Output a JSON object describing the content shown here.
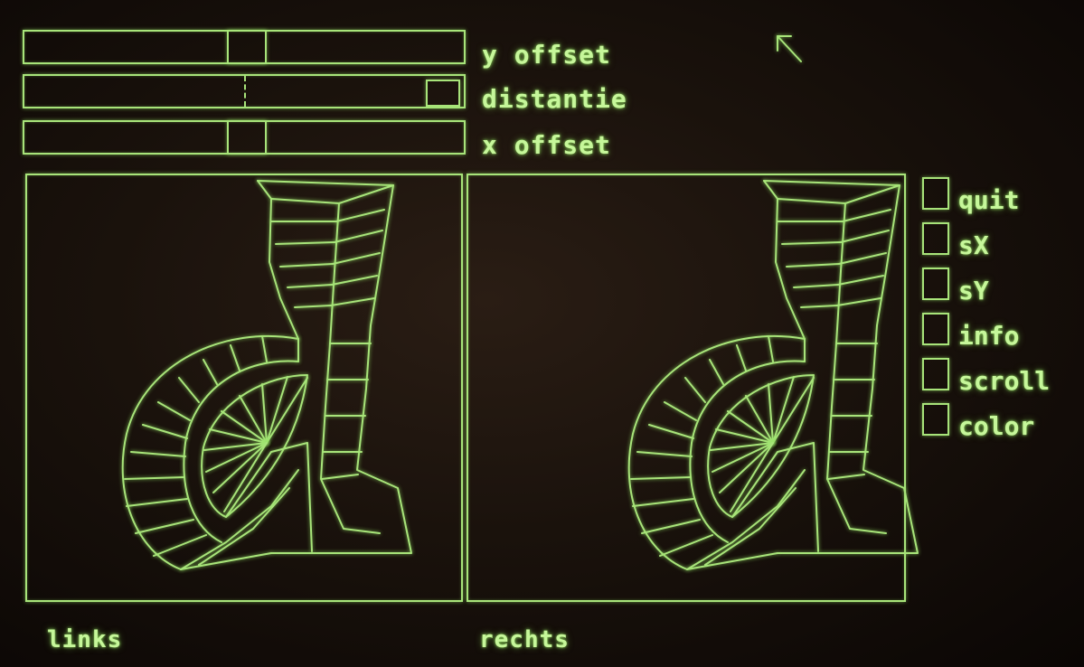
{
  "sliders": [
    {
      "id": "y-offset",
      "label": "y offset",
      "value": 0.5
    },
    {
      "id": "distantie",
      "label": "distantie",
      "value": 1.0
    },
    {
      "id": "x-offset",
      "label": "x offset",
      "value": 0.5
    }
  ],
  "menu": {
    "items": [
      {
        "id": "quit",
        "label": "quit"
      },
      {
        "id": "sx",
        "label": "sX"
      },
      {
        "id": "sy",
        "label": "sY"
      },
      {
        "id": "info",
        "label": "info"
      },
      {
        "id": "scroll",
        "label": "scroll"
      },
      {
        "id": "color",
        "label": "color"
      }
    ]
  },
  "views": {
    "left_label": "links",
    "right_label": "rechts"
  },
  "cursor": {
    "icon": "arrow-cursor-icon"
  },
  "colors": {
    "phosphor": "#a8e47a",
    "background": "#1a120c"
  }
}
